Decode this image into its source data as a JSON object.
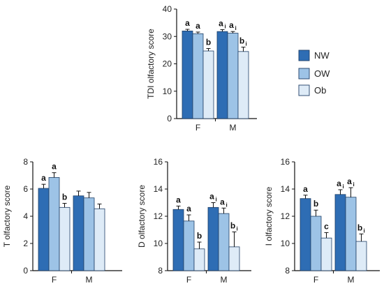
{
  "colors": {
    "NW": "#2e6db4",
    "OW": "#9dc3e6",
    "Ob": "#deebf7",
    "edge": "#1f3f66",
    "axis": "#111111"
  },
  "legend": [
    "NW",
    "OW",
    "Ob"
  ],
  "chart_data": [
    {
      "type": "bar",
      "ylabel": "TDI olfactory score",
      "ylim": [
        0,
        40
      ],
      "yticks": [
        0,
        10,
        20,
        30,
        40
      ],
      "categories": [
        "F",
        "M"
      ],
      "series": [
        {
          "name": "NW",
          "values": [
            32.0,
            31.8
          ],
          "errors": [
            0.6,
            0.7
          ]
        },
        {
          "name": "OW",
          "values": [
            31.0,
            31.2
          ],
          "errors": [
            0.6,
            0.6
          ]
        },
        {
          "name": "Ob",
          "values": [
            24.7,
            24.5
          ],
          "errors": [
            0.9,
            1.6
          ]
        }
      ],
      "sig_labels": [
        [
          "a",
          "a"
        ],
        [
          "a",
          "a"
        ],
        [
          "b",
          "b"
        ]
      ],
      "sig_sub": [
        [
          "",
          "i"
        ],
        [
          "",
          "i"
        ],
        [
          "",
          "i"
        ]
      ]
    },
    {
      "type": "bar",
      "ylabel": "T olfactory score",
      "ylim": [
        0,
        8
      ],
      "yticks": [
        0,
        2,
        4,
        6,
        8
      ],
      "categories": [
        "F",
        "M"
      ],
      "series": [
        {
          "name": "NW",
          "values": [
            6.05,
            5.5
          ],
          "errors": [
            0.3,
            0.35
          ]
        },
        {
          "name": "OW",
          "values": [
            6.85,
            5.35
          ],
          "errors": [
            0.35,
            0.4
          ]
        },
        {
          "name": "Ob",
          "values": [
            4.65,
            4.55
          ],
          "errors": [
            0.3,
            0.35
          ]
        }
      ],
      "sig_labels": [
        [
          "a",
          ""
        ],
        [
          "a",
          ""
        ],
        [
          "b",
          ""
        ]
      ],
      "sig_sub": [
        [
          "",
          ""
        ],
        [
          "",
          ""
        ],
        [
          "",
          ""
        ]
      ]
    },
    {
      "type": "bar",
      "ylabel": "D olfactory score",
      "ylim": [
        8,
        16
      ],
      "yticks": [
        8,
        10,
        12,
        14,
        16
      ],
      "categories": [
        "F",
        "M"
      ],
      "series": [
        {
          "name": "NW",
          "values": [
            12.5,
            12.65
          ],
          "errors": [
            0.25,
            0.35
          ]
        },
        {
          "name": "OW",
          "values": [
            11.65,
            12.2
          ],
          "errors": [
            0.45,
            0.4
          ]
        },
        {
          "name": "Ob",
          "values": [
            9.6,
            9.75
          ],
          "errors": [
            0.5,
            1.1
          ]
        }
      ],
      "sig_labels": [
        [
          "a",
          "a"
        ],
        [
          "a",
          "a"
        ],
        [
          "b",
          "b"
        ]
      ],
      "sig_sub": [
        [
          "",
          "i"
        ],
        [
          "",
          "i"
        ],
        [
          "",
          "i"
        ]
      ]
    },
    {
      "type": "bar",
      "ylabel": "I olfactory score",
      "ylim": [
        8,
        16
      ],
      "yticks": [
        8,
        10,
        12,
        14,
        16
      ],
      "categories": [
        "F",
        "M"
      ],
      "series": [
        {
          "name": "NW",
          "values": [
            13.3,
            13.6
          ],
          "errors": [
            0.25,
            0.35
          ]
        },
        {
          "name": "OW",
          "values": [
            12.0,
            13.4
          ],
          "errors": [
            0.45,
            0.7
          ]
        },
        {
          "name": "Ob",
          "values": [
            10.4,
            10.15
          ],
          "errors": [
            0.4,
            0.55
          ]
        }
      ],
      "sig_labels": [
        [
          "a",
          "a"
        ],
        [
          "b",
          "a"
        ],
        [
          "c",
          "b"
        ]
      ],
      "sig_sub": [
        [
          "",
          "i"
        ],
        [
          "",
          "i"
        ],
        [
          "",
          "i"
        ]
      ]
    }
  ]
}
